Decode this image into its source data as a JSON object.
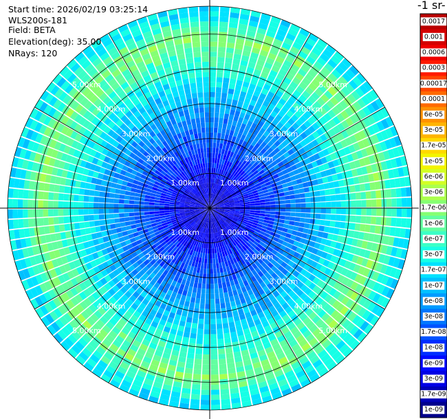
{
  "header": {
    "start_time": "Start time: 2026/02/19 03:25:14",
    "instrument": "WLS200s-181",
    "field": "Field: BETA",
    "elevation": "Elevation(deg): 35.00",
    "nrays": "NRays: 120"
  },
  "colorbar": {
    "title_fragment": "-1 sr-",
    "ticks": [
      "0.0017",
      "0.001",
      "0.0006",
      "0.0003",
      "0.00017",
      "0.0001",
      "6e-05",
      "3e-05",
      "1.7e-05",
      "1e-05",
      "6e-06",
      "3e-06",
      "1.7e-06",
      "1e-06",
      "6e-07",
      "3e-07",
      "1.7e-07",
      "1e-07",
      "6e-08",
      "3e-08",
      "1.7e-08",
      "1e-08",
      "6e-09",
      "3e-09",
      "1.7e-09",
      "1e-09"
    ],
    "colors": [
      "#ba0000",
      "#d40000",
      "#ef0000",
      "#ff1a00",
      "#ff4400",
      "#ff6a00",
      "#ff9100",
      "#ffb400",
      "#ffd900",
      "#f3f400",
      "#d2ff24",
      "#abff4d",
      "#85ff73",
      "#62ffa0",
      "#3bffc6",
      "#16ffe6",
      "#00e2ff",
      "#00c0ff",
      "#009bff",
      "#0077ff",
      "#0052ff",
      "#002cff",
      "#0008ff",
      "#0000e6",
      "#0000b8",
      "#00008c"
    ]
  },
  "chart_data": {
    "type": "heatmap",
    "projection": "polar PPI",
    "field": "BETA",
    "elevation_deg": 35.0,
    "n_rays": 120,
    "max_range_km": 5.8,
    "range_rings_km": [
      1.0,
      2.0,
      3.0,
      4.0,
      5.0
    ],
    "range_labels": [
      "1.00km",
      "2.00km",
      "3.00km",
      "4.00km",
      "5.00km"
    ],
    "color_scale": "log",
    "color_range": [
      1e-09,
      0.0017
    ],
    "radial_profile": [
      {
        "range_km": 0.5,
        "value": 3e-09
      },
      {
        "range_km": 1.5,
        "value": 1e-08
      },
      {
        "range_km": 2.5,
        "value": 4e-08
      },
      {
        "range_km": 3.5,
        "value": 1.5e-07
      },
      {
        "range_km": 4.3,
        "value": 6e-07
      },
      {
        "range_km": 4.9,
        "value": 1.7e-06
      },
      {
        "range_km": 5.5,
        "value": 2e-07
      }
    ],
    "peak_value_approx": 1e-05,
    "peak_range_km_approx": 4.9
  }
}
